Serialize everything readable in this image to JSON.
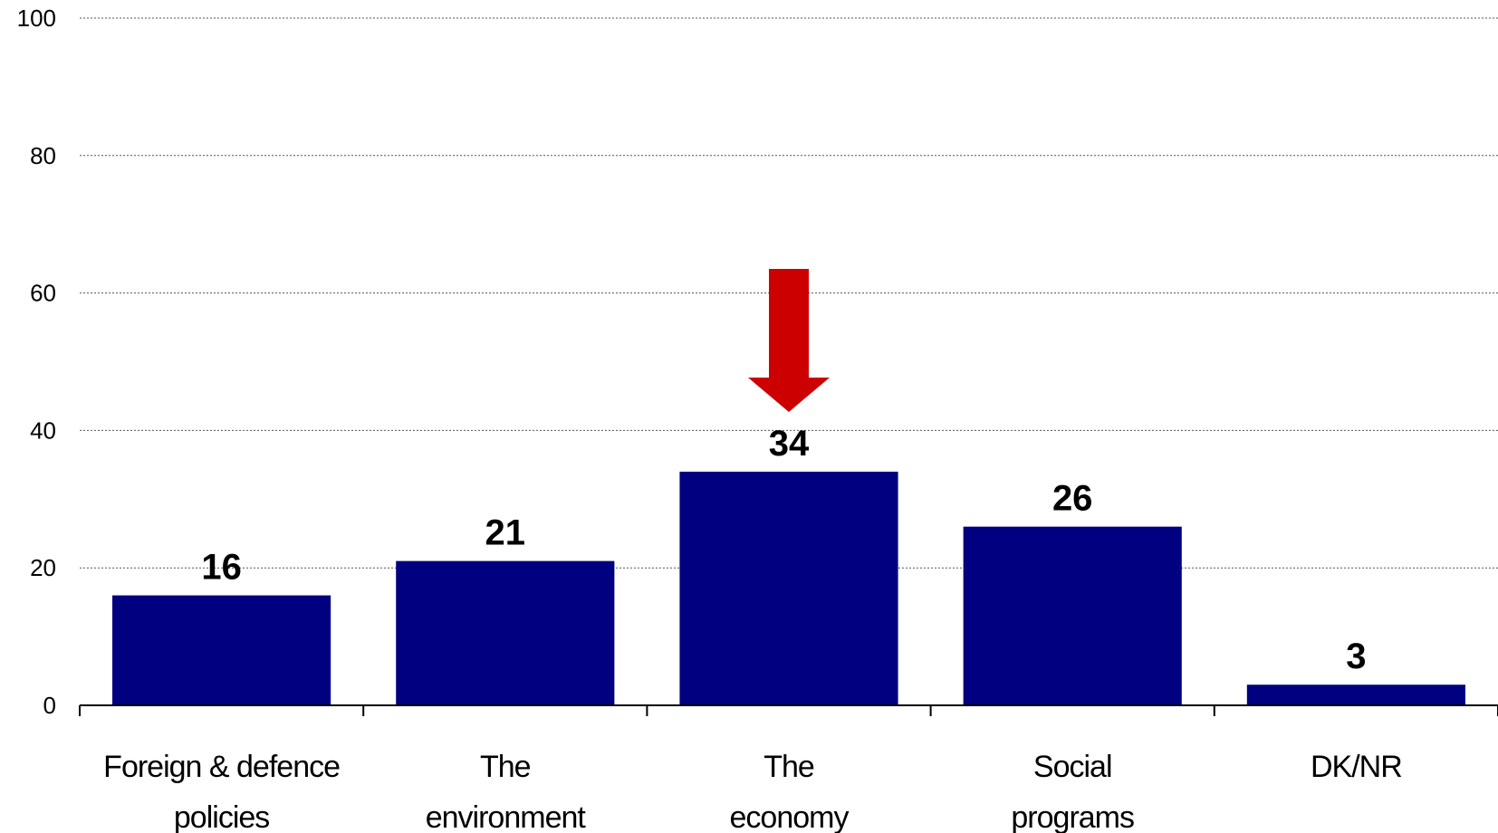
{
  "chart_data": {
    "type": "bar",
    "categories": [
      [
        "Foreign & defence",
        "policies"
      ],
      [
        "The",
        "environment"
      ],
      [
        "The",
        "economy"
      ],
      [
        "Social",
        "programs"
      ],
      [
        "DK/NR"
      ]
    ],
    "values": [
      16,
      21,
      34,
      26,
      3
    ],
    "data_labels": [
      "16",
      "21",
      "34",
      "26",
      "3"
    ],
    "yticks": [
      "0",
      "20",
      "40",
      "60",
      "80",
      "100"
    ],
    "ylim": [
      0,
      100
    ],
    "title": "",
    "xlabel": "",
    "ylabel": "",
    "grid": true,
    "grid_style": "dotted",
    "bar_color": "#000080",
    "highlight_index": 2,
    "highlight_marker": "down-arrow-icon",
    "highlight_color": "#cc0000"
  }
}
